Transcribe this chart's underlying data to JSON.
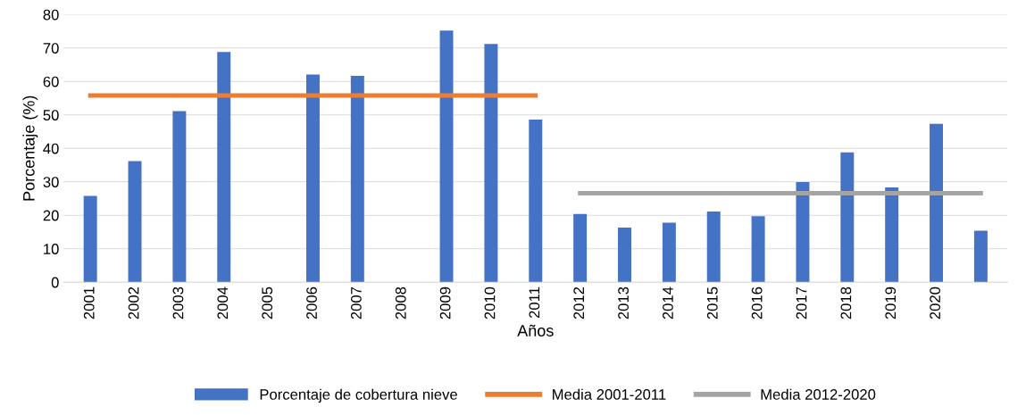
{
  "chart_data": {
    "type": "bar",
    "xlabel": "Años",
    "ylabel": "Porcentaje (%)",
    "categories": [
      "2001",
      "2002",
      "2003",
      "2004",
      "2005",
      "2006",
      "2007",
      "2008",
      "2009",
      "2010",
      "2011",
      "2012",
      "2013",
      "2014",
      "2015",
      "2016",
      "2017",
      "2018",
      "2019",
      "2020",
      null
    ],
    "series": [
      {
        "name": "Porcentaje de cobertura nieve",
        "color": "#4472c4",
        "values": [
          25.8,
          36.2,
          51.1,
          68.8,
          null,
          62.1,
          61.7,
          null,
          75.2,
          71.2,
          48.6,
          20.4,
          16.3,
          17.8,
          21.1,
          19.7,
          29.9,
          38.8,
          28.3,
          47.3,
          15.4
        ]
      },
      {
        "name": "Media 2001-2011",
        "color": "#ed7d31",
        "type": "line",
        "values": [
          55.8,
          55.8,
          55.8,
          55.8,
          55.8,
          55.8,
          55.8,
          55.8,
          55.8,
          55.8,
          55.8,
          null,
          null,
          null,
          null,
          null,
          null,
          null,
          null,
          null,
          null
        ]
      },
      {
        "name": "Media 2012-2020",
        "color": "#a5a5a5",
        "type": "line",
        "values": [
          null,
          null,
          null,
          null,
          null,
          null,
          null,
          null,
          null,
          null,
          null,
          26.6,
          26.6,
          26.6,
          26.6,
          26.6,
          26.6,
          26.6,
          26.6,
          26.6,
          26.6
        ]
      }
    ],
    "ylim": [
      0,
      80
    ],
    "yticks": [
      0,
      10,
      20,
      30,
      40,
      50,
      60,
      70,
      80
    ],
    "grid": "y",
    "legend": "bottom",
    "marker": "none",
    "line_style": "solid"
  }
}
